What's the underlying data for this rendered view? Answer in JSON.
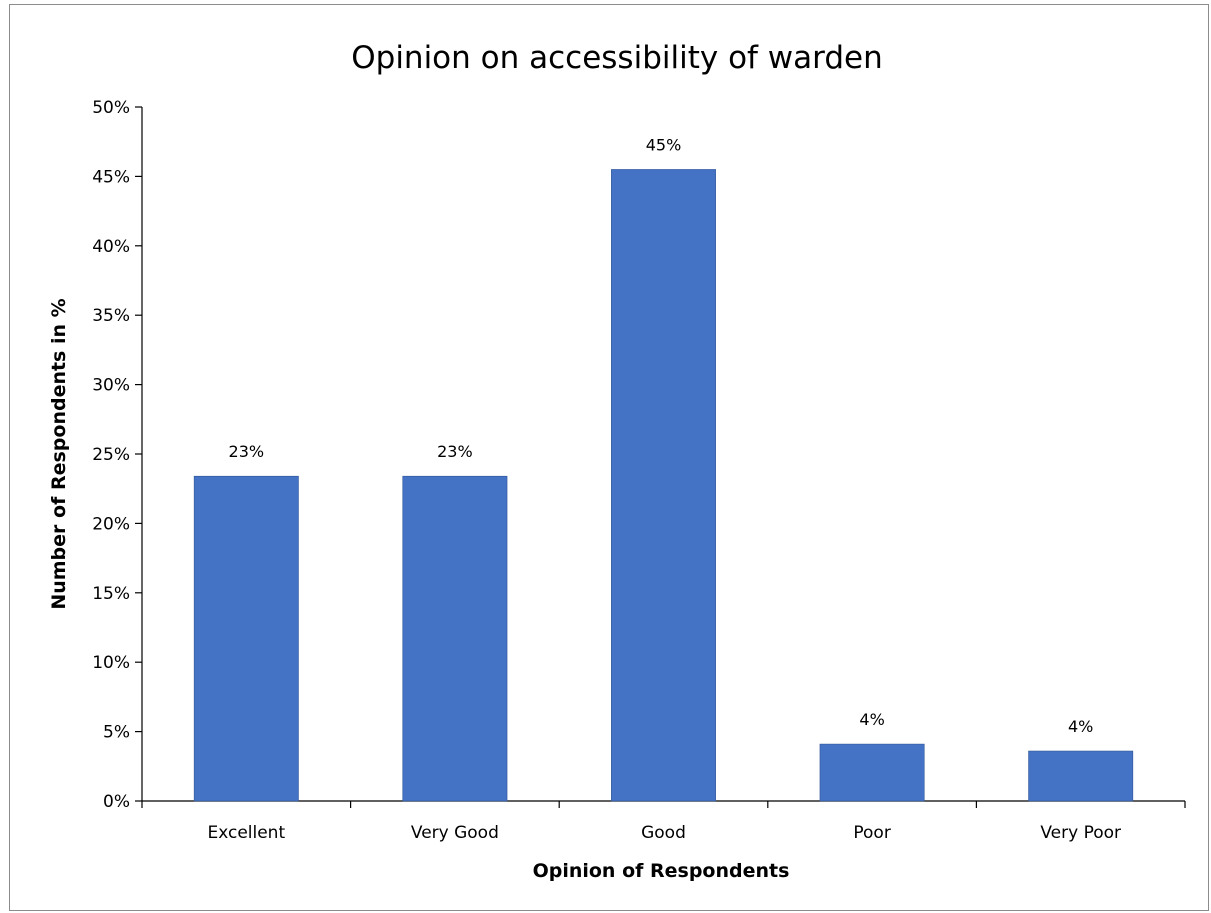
{
  "chart_data": {
    "type": "bar",
    "title": "Opinion on accessibility of warden",
    "xlabel": "Opinion of Respondents",
    "ylabel": "Number of Respondents in %",
    "categories": [
      "Excellent",
      "Very Good",
      "Good",
      "Poor",
      "Very Poor"
    ],
    "values": [
      23.4,
      23.4,
      45.5,
      4.1,
      3.6
    ],
    "data_labels": [
      "23%",
      "23%",
      "45%",
      "4%",
      "4%"
    ],
    "ylim": [
      0,
      50
    ],
    "yticks": [
      0,
      5,
      10,
      15,
      20,
      25,
      30,
      35,
      40,
      45,
      50
    ],
    "ytick_labels": [
      "0%",
      "5%",
      "10%",
      "15%",
      "20%",
      "25%",
      "30%",
      "35%",
      "40%",
      "45%",
      "50%"
    ],
    "grid": false,
    "legend": "none",
    "bar_color": "#4472C4"
  }
}
